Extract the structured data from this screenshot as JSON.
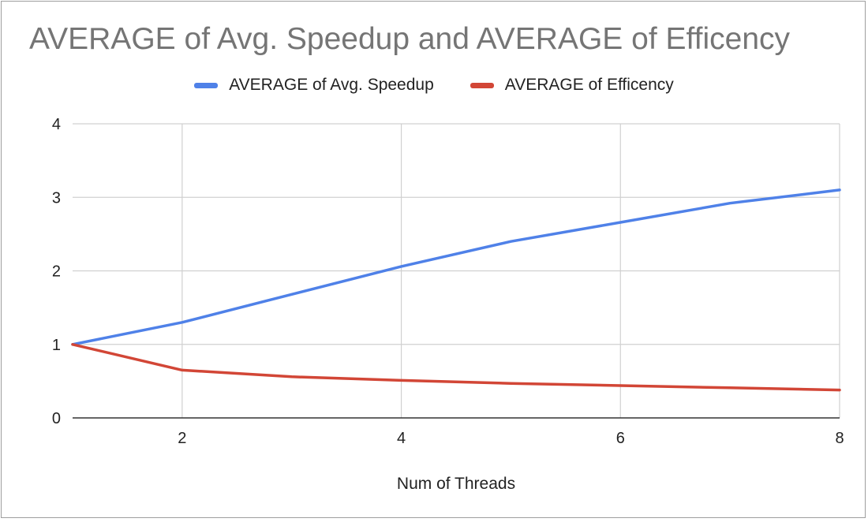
{
  "chart_data": {
    "type": "line",
    "title": "AVERAGE of Avg. Speedup and AVERAGE of Efficency",
    "xlabel": "Num of Threads",
    "ylabel": "",
    "x": [
      1,
      2,
      3,
      4,
      5,
      6,
      7,
      8
    ],
    "xlim": [
      1,
      8
    ],
    "ylim": [
      0,
      4
    ],
    "x_ticks": [
      2,
      4,
      6,
      8
    ],
    "y_ticks": [
      0,
      1,
      2,
      3,
      4
    ],
    "grid": true,
    "legend_position": "top",
    "series": [
      {
        "name": "AVERAGE of Avg. Speedup",
        "color": "#4f81e8",
        "values": [
          1.0,
          1.3,
          1.68,
          2.06,
          2.4,
          2.66,
          2.92,
          3.1
        ]
      },
      {
        "name": "AVERAGE of Efficency",
        "color": "#d24636",
        "values": [
          1.0,
          0.65,
          0.56,
          0.51,
          0.47,
          0.44,
          0.41,
          0.38
        ]
      }
    ]
  }
}
